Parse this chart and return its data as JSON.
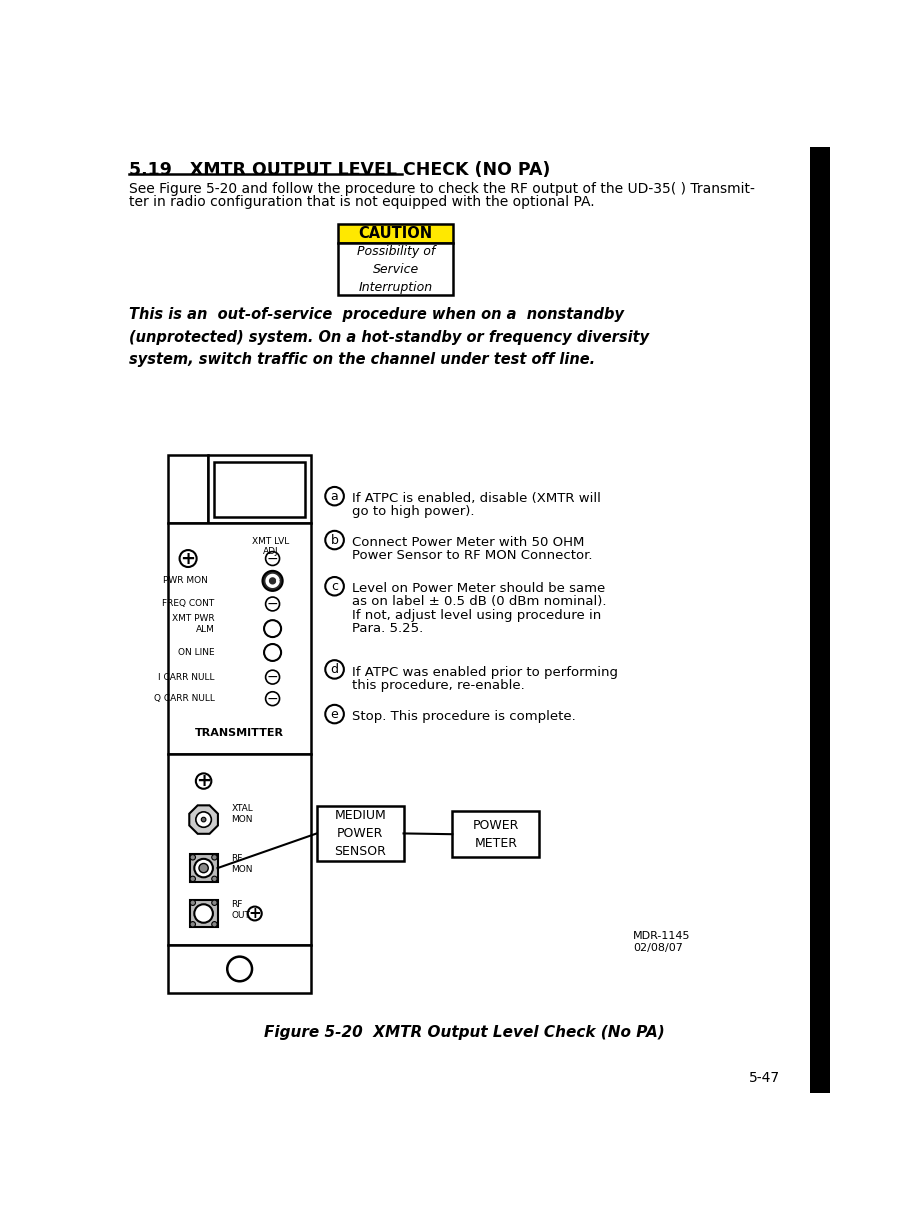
{
  "title_section": "5.19   XMTR OUTPUT LEVEL CHECK (NO PA)",
  "intro_line1": "See Figure 5-20 and follow the procedure to check the RF output of the UD-35( ) Transmit-",
  "intro_line2": "ter in radio configuration that is not equipped with the optional PA.",
  "caution_title": "CAUTION",
  "caution_bg": "#FFE800",
  "caution_text": "Possibility of\nService\nInterruption",
  "warning_text": "This is an  out-of-service  procedure when on a  nonstandby\n(unprotected) system. On a hot-standby or frequency diversity\nsystem, switch traffic on the channel under test off line.",
  "steps": [
    {
      "label": "a",
      "line1": "If ATPC is enabled, disable (XMTR will",
      "line2": "go to high power)."
    },
    {
      "label": "b",
      "line1": "Connect Power Meter with 50 OHM",
      "line2": "Power Sensor to RF MON Connector."
    },
    {
      "label": "c",
      "line1": "Level on Power Meter should be same",
      "line2": "as on label ± 0.5 dB (0 dBm nominal).",
      "line3": "If not, adjust level using procedure in",
      "line4": "Para. 5.25."
    },
    {
      "label": "d",
      "line1": "If ATPC was enabled prior to performing",
      "line2": "this procedure, re-enable."
    },
    {
      "label": "e",
      "line1": "Stop. This procedure is complete."
    }
  ],
  "figure_caption": "Figure 5-20  XMTR Output Level Check (No PA)",
  "page_num": "5-47",
  "doc_num": "MDR-1145\n02/08/07",
  "box1_text": "MEDIUM\nPOWER\nSENSOR",
  "box2_text": "POWER\nMETER",
  "bg_color": "#FFFFFF"
}
